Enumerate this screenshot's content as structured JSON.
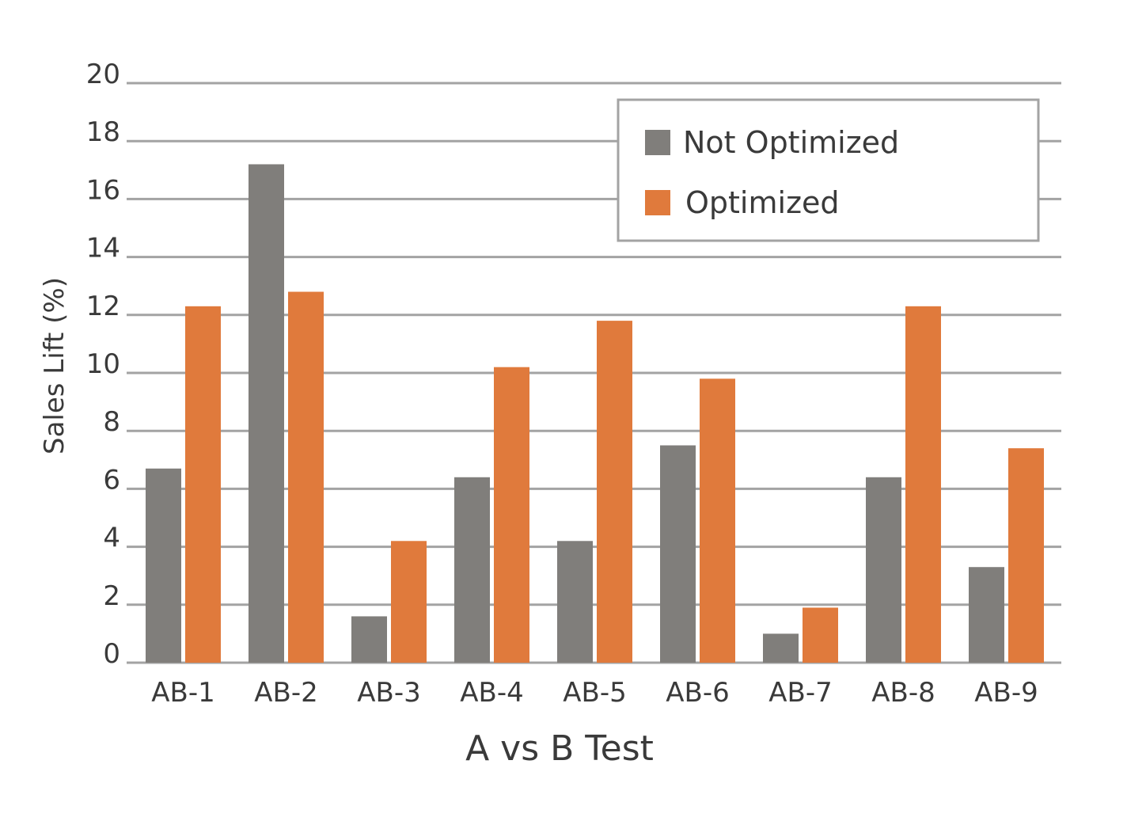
{
  "chart_data": {
    "type": "bar",
    "xlabel": "A vs B Test",
    "ylabel": "Sales Lift (%)",
    "ylim": [
      0,
      20
    ],
    "yticks": [
      0,
      2,
      4,
      6,
      8,
      10,
      12,
      14,
      16,
      18,
      20
    ],
    "grid": true,
    "legend_position": "top-right",
    "categories": [
      "AB-1",
      "AB-2",
      "AB-3",
      "AB-4",
      "AB-5",
      "AB-6",
      "AB-7",
      "AB-8",
      "AB-9"
    ],
    "series": [
      {
        "name": "Not Optimized",
        "color": "#807e7b",
        "values": [
          6.7,
          17.2,
          1.6,
          6.4,
          4.2,
          7.5,
          1.0,
          6.4,
          3.3
        ]
      },
      {
        "name": "Optimized",
        "color": "#e07a3c",
        "values": [
          12.3,
          12.8,
          4.2,
          10.2,
          11.8,
          9.8,
          1.9,
          12.3,
          7.4
        ]
      }
    ]
  },
  "colors": {
    "grid": "#a3a3a3",
    "text": "#3a3a3a",
    "legend_border": "#a3a3a3"
  }
}
